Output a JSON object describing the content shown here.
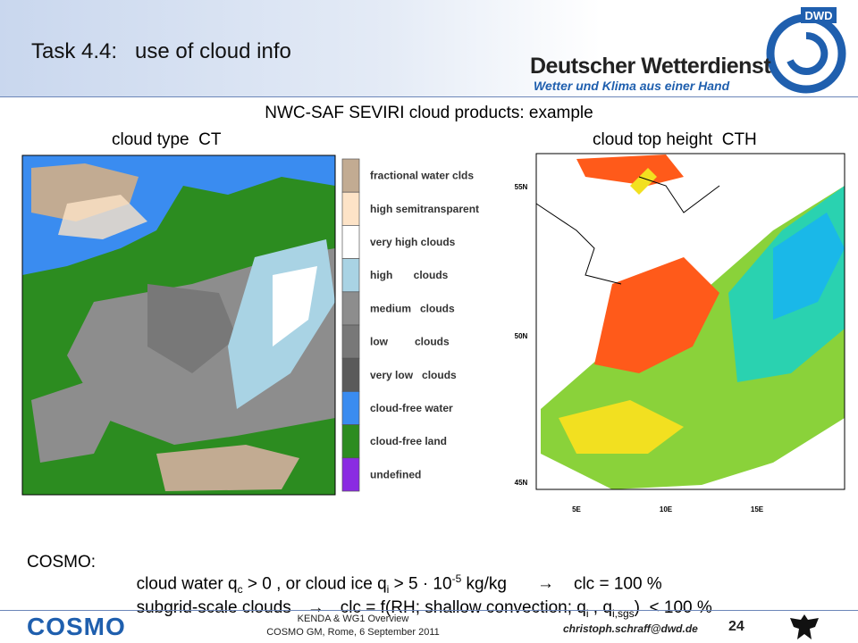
{
  "header": {
    "title": "Task 4.4:   use of cloud info",
    "logo_badge": "DWD",
    "logo_name": "Deutscher Wetterdienst",
    "logo_slogan": "Wetter und Klima aus einer Hand"
  },
  "subtitle": "NWC-SAF SEVIRI cloud products: example",
  "left_panel": {
    "label": "cloud type  CT",
    "legend": [
      {
        "name": "fractional water clds",
        "color": "#c2ab92"
      },
      {
        "name": "high semitransparent",
        "color": "#fde3c7"
      },
      {
        "name": "very high clouds",
        "color": "#ffffff"
      },
      {
        "name": "high       clouds",
        "color": "#a9d3e4"
      },
      {
        "name": "medium   clouds",
        "color": "#8d8d8d"
      },
      {
        "name": "low         clouds",
        "color": "#787878"
      },
      {
        "name": "very low   clouds",
        "color": "#5a5a5a"
      },
      {
        "name": "cloud-free water",
        "color": "#3a8cf0"
      },
      {
        "name": "cloud-free land",
        "color": "#2c8c20"
      },
      {
        "name": "undefined",
        "color": "#8a2be2"
      }
    ]
  },
  "right_panel": {
    "label": "cloud top height  CTH",
    "lat_labels": [
      "55N",
      "50N",
      "45N"
    ],
    "lon_labels": [
      "5E",
      "10E",
      "15E"
    ]
  },
  "cosmo": {
    "lead": "COSMO:",
    "line1": [
      "cloud water q",
      "c",
      " > 0 , or cloud ice q",
      "i",
      " > 5 · 10",
      "-5",
      " kg/kg",
      "→",
      "clc = 100 %"
    ],
    "line2": [
      "subgrid-scale clouds",
      "→",
      "clc = f(RH; shallow convection; q",
      "i",
      " , q",
      "i,sgs",
      ")  < 100 %"
    ]
  },
  "footer": {
    "logo": "COSMO",
    "line1": "KENDA & WG1 Overview",
    "line2": "COSMO GM, Rome, 6 September 2011",
    "email": "christoph.schraff@dwd.de",
    "page": "24"
  }
}
